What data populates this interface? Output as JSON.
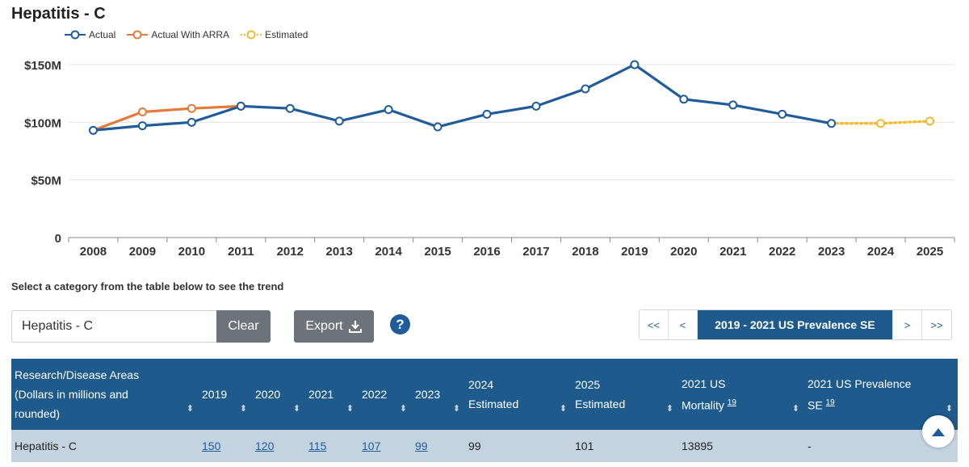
{
  "title": "Hepatitis - C",
  "legend": [
    {
      "label": "Actual",
      "color": "#1f5c99"
    },
    {
      "label": "Actual With ARRA",
      "color": "#e57b3a"
    },
    {
      "label": "Estimated",
      "color": "#f5b82e"
    }
  ],
  "chart_data": {
    "type": "line",
    "title": "Hepatitis - C",
    "categories": [
      "2008",
      "2009",
      "2010",
      "2011",
      "2012",
      "2013",
      "2014",
      "2015",
      "2016",
      "2017",
      "2018",
      "2019",
      "2020",
      "2021",
      "2022",
      "2023",
      "2024",
      "2025"
    ],
    "y_ticks": [
      "0",
      "$50M",
      "$100M",
      "$150M"
    ],
    "ylim": [
      0,
      150
    ],
    "series": [
      {
        "name": "Actual",
        "color": "#1f5c99",
        "style": "solid",
        "x": [
          "2008",
          "2009",
          "2010",
          "2011",
          "2012",
          "2013",
          "2014",
          "2015",
          "2016",
          "2017",
          "2018",
          "2019",
          "2020",
          "2021",
          "2022",
          "2023"
        ],
        "values": [
          93,
          97,
          100,
          114,
          112,
          101,
          111,
          96,
          107,
          114,
          129,
          150,
          120,
          115,
          107,
          99
        ]
      },
      {
        "name": "Actual With ARRA",
        "color": "#e57b3a",
        "style": "solid",
        "x": [
          "2008",
          "2009",
          "2010",
          "2011"
        ],
        "values": [
          93,
          109,
          112,
          114
        ]
      },
      {
        "name": "Estimated",
        "color": "#f5b82e",
        "style": "dotted",
        "x": [
          "2023",
          "2024",
          "2025"
        ],
        "values": [
          99,
          99,
          101
        ]
      }
    ]
  },
  "prompt": "Select a category from the table below to see the trend",
  "search": {
    "value": "Hepatitis - C"
  },
  "clear_label": "Clear",
  "export_label": "Export",
  "help_label": "?",
  "pager": {
    "first": "<<",
    "prev": "<",
    "current": "2019 - 2021 US Prevalence SE",
    "next": ">",
    "last": ">>"
  },
  "table": {
    "headers": {
      "area_line1": "Research/Disease Areas",
      "area_line2": "(Dollars in millions and",
      "area_line3": "rounded)",
      "y2019": "2019",
      "y2020": "2020",
      "y2021": "2021",
      "y2022": "2022",
      "y2023": "2023",
      "e2024_line1": "2024",
      "e2024_line2": "Estimated",
      "e2025_line1": "2025",
      "e2025_line2": "Estimated",
      "mort_line1": "2021 US",
      "mort_line2": "Mortality",
      "mort_sup": "19",
      "prev_line1": "2021 US Prevalence",
      "prev_line2": "SE",
      "prev_sup": "19"
    },
    "row": {
      "area": "Hepatitis - C",
      "y2019": "150",
      "y2020": "120",
      "y2021": "115",
      "y2022": "107",
      "y2023": "99",
      "e2024": "99",
      "e2025": "101",
      "mortality": "13895",
      "prevalence_se": "-"
    }
  }
}
